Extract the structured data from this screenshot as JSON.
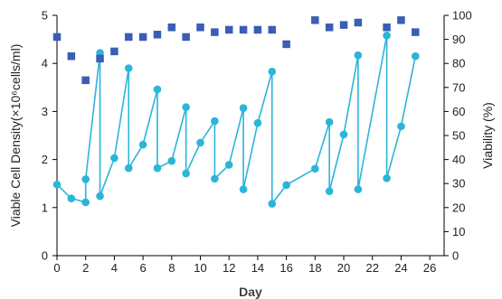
{
  "chart_data": {
    "type": "scatter",
    "title": "",
    "xlabel": "Day",
    "ylabel": "Viable Cell Density(×10⁶cells/ml)",
    "y2label": "Viability (%)",
    "xlim": [
      0,
      27
    ],
    "ylim": [
      0,
      5
    ],
    "y2lim": [
      0,
      100
    ],
    "xticks": [
      0,
      2,
      4,
      6,
      8,
      10,
      12,
      14,
      16,
      18,
      20,
      22,
      24,
      26
    ],
    "yticks": [
      0,
      1,
      2,
      3,
      4,
      5
    ],
    "y2ticks": [
      0,
      10,
      20,
      30,
      40,
      50,
      60,
      70,
      80,
      90,
      100
    ],
    "grid": false,
    "legend": "none",
    "colors": {
      "vcd": "#2bb5d8",
      "viability": "#3a5db5",
      "axis": "#000000"
    },
    "series": [
      {
        "axis": "left",
        "style": "line-marker",
        "marker": "circle",
        "x": [
          0,
          1,
          2,
          2,
          3,
          3,
          4,
          5,
          5,
          6,
          7,
          7,
          8,
          9,
          9,
          10,
          11,
          11,
          12,
          13,
          13,
          14,
          15,
          15,
          16,
          18,
          19,
          19,
          20,
          21,
          21,
          23,
          23,
          24,
          25
        ],
        "y": [
          1.48,
          1.19,
          1.11,
          1.59,
          4.22,
          1.24,
          2.03,
          3.9,
          1.82,
          2.31,
          3.46,
          1.82,
          1.97,
          3.09,
          1.71,
          2.35,
          2.8,
          1.6,
          1.89,
          3.07,
          1.38,
          2.76,
          3.83,
          1.08,
          1.47,
          1.81,
          2.78,
          1.34,
          2.52,
          4.17,
          1.38,
          4.58,
          1.61,
          2.69,
          4.15
        ]
      },
      {
        "axis": "right",
        "style": "marker-only",
        "marker": "square",
        "x": [
          0,
          1,
          2,
          3,
          4,
          5,
          6,
          7,
          8,
          9,
          10,
          11,
          12,
          13,
          14,
          15,
          16,
          18,
          19,
          20,
          21,
          23,
          24,
          25
        ],
        "y": [
          91,
          83,
          73,
          82,
          85,
          91,
          91,
          92,
          95,
          91,
          95,
          93,
          94,
          94,
          94,
          94,
          88,
          98,
          95,
          96,
          97,
          95,
          98,
          93
        ]
      }
    ]
  }
}
